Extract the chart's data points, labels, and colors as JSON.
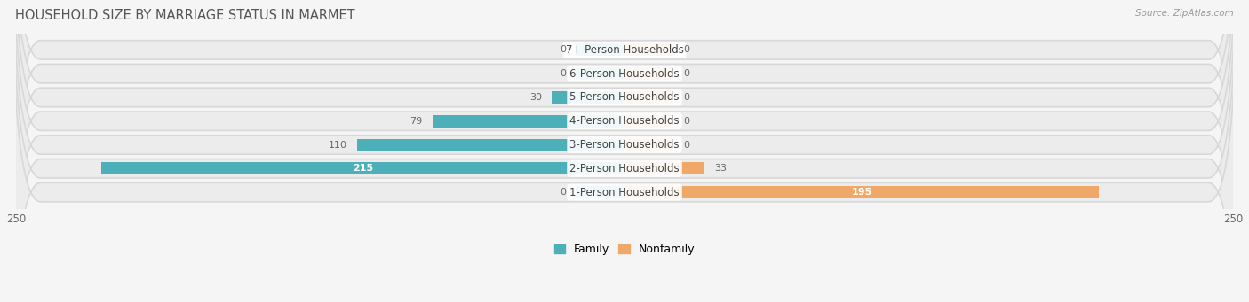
{
  "title": "HOUSEHOLD SIZE BY MARRIAGE STATUS IN MARMET",
  "source": "Source: ZipAtlas.com",
  "categories": [
    "7+ Person Households",
    "6-Person Households",
    "5-Person Households",
    "4-Person Households",
    "3-Person Households",
    "2-Person Households",
    "1-Person Households"
  ],
  "family_values": [
    0,
    0,
    30,
    79,
    110,
    215,
    0
  ],
  "nonfamily_values": [
    0,
    0,
    0,
    0,
    0,
    33,
    195
  ],
  "family_color": "#4DAFB8",
  "nonfamily_color": "#F0A868",
  "stub_size": 20,
  "xlim": 250,
  "bar_height": 0.52,
  "background_color": "#f5f5f5",
  "row_bg_color": "#e8e8e8",
  "label_fontsize": 8.5,
  "title_fontsize": 10.5,
  "source_fontsize": 7.5,
  "value_fontsize": 8,
  "legend_fontsize": 9
}
